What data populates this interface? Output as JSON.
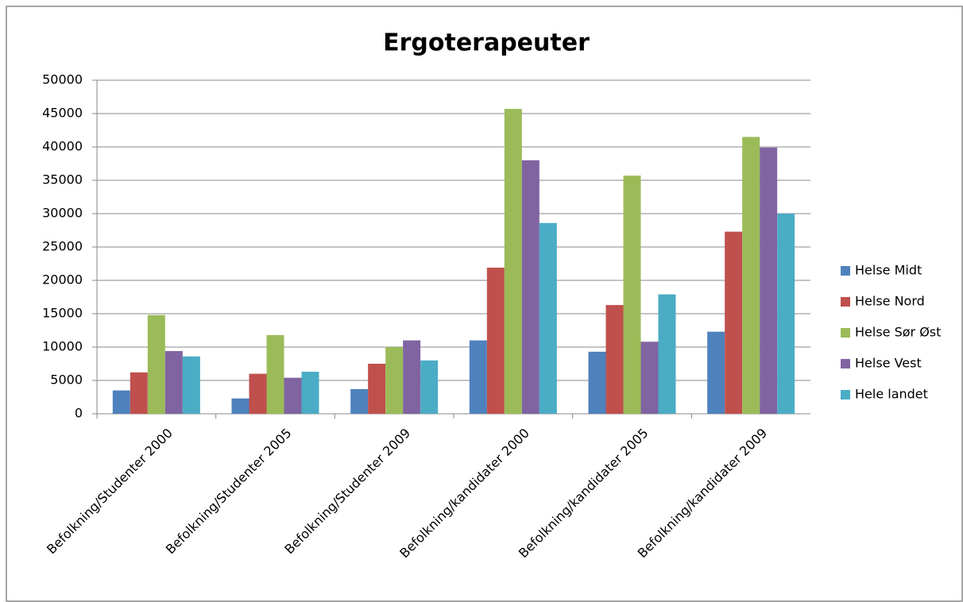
{
  "chart_data": {
    "type": "bar",
    "title": "Ergoterapeuter",
    "categories": [
      "Befolkning/Studenter 2000",
      "Befolkning/Studenter 2005",
      "Befolkning/Studenter 2009",
      "Befolkning/kandidater 2000",
      "Befolkning/kandidater 2005",
      "Befolkning/kandidater 2009"
    ],
    "series": [
      {
        "name": "Helse Midt",
        "color": "#4f81bd",
        "values": [
          3500,
          2300,
          3700,
          11000,
          9300,
          12300
        ]
      },
      {
        "name": "Helse Nord",
        "color": "#c0504d",
        "values": [
          6200,
          6000,
          7500,
          21900,
          16300,
          27300
        ]
      },
      {
        "name": "Helse Sør Øst",
        "color": "#9bbb59",
        "values": [
          14800,
          11800,
          10000,
          45700,
          35700,
          41500
        ]
      },
      {
        "name": "Helse Vest",
        "color": "#8064a2",
        "values": [
          9400,
          5400,
          11000,
          38000,
          10800,
          39900
        ]
      },
      {
        "name": "Hele landet",
        "color": "#4bacc6",
        "values": [
          8600,
          6300,
          8000,
          28600,
          17900,
          30000
        ]
      }
    ],
    "ylim": [
      0,
      50000
    ],
    "yticks": [
      0,
      5000,
      10000,
      15000,
      20000,
      25000,
      30000,
      35000,
      40000,
      45000,
      50000
    ],
    "grid": true,
    "legend": "right"
  }
}
